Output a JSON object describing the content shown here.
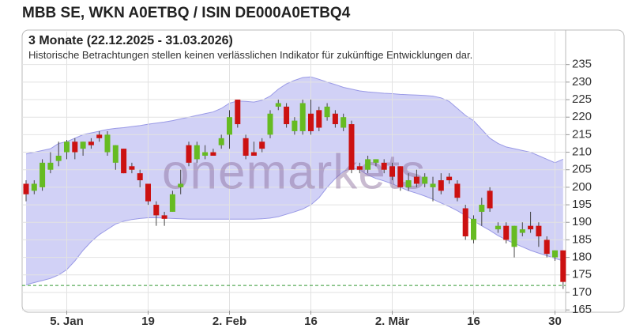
{
  "chart_data": {
    "type": "candlestick",
    "title": "MBB SE, WKN A0ETBQ / ISIN DE000A0ETBQ4",
    "subtitle": "3 Monate (22.12.2025 - 31.03.2026)",
    "note": "Historische Betrachtungen stellen keinen verlässlichen Indikator für zukünftige Entwicklungen dar.",
    "watermark": "onemarkets",
    "categories": [
      null,
      null,
      null,
      null,
      null,
      "5. Jan",
      null,
      null,
      null,
      null,
      null,
      null,
      null,
      null,
      null,
      "19",
      null,
      null,
      null,
      null,
      null,
      null,
      null,
      null,
      null,
      "2. Feb",
      null,
      null,
      null,
      null,
      null,
      null,
      null,
      null,
      null,
      "16",
      null,
      null,
      null,
      null,
      null,
      null,
      null,
      null,
      null,
      "2. Mär",
      null,
      null,
      null,
      null,
      null,
      null,
      null,
      null,
      null,
      "16",
      null,
      null,
      null,
      null,
      null,
      null,
      null,
      null,
      null,
      "30",
      null
    ],
    "open": [
      201,
      199,
      200,
      205,
      207.5,
      210,
      213,
      211,
      213,
      215,
      210,
      207,
      211,
      206,
      204,
      201,
      195,
      192,
      193,
      200,
      212,
      208,
      209,
      210,
      212,
      215,
      225,
      214,
      210,
      213,
      215,
      223,
      223,
      216,
      216,
      221,
      222,
      220,
      221,
      217,
      218,
      206,
      205,
      207,
      207,
      206,
      206,
      200,
      203,
      201,
      200,
      202,
      203,
      201,
      194,
      185,
      193,
      199,
      188,
      189,
      183,
      187,
      189,
      189,
      185,
      180,
      182
    ],
    "high": [
      202,
      202,
      208,
      210,
      213,
      213.5,
      214,
      213,
      214,
      216,
      216,
      212,
      211,
      207,
      205,
      201,
      196,
      193,
      199,
      205,
      213,
      213,
      212,
      211,
      215,
      222,
      225,
      215,
      213,
      214,
      222,
      225,
      224,
      220,
      225,
      225,
      223,
      224,
      222,
      221,
      219,
      207,
      209,
      208,
      208,
      207,
      206,
      204,
      205,
      204,
      203,
      204,
      204,
      202,
      195,
      192,
      197,
      200,
      190,
      190,
      189,
      190,
      193,
      190,
      186,
      182,
      182
    ],
    "low": [
      196,
      198,
      199,
      204,
      206,
      208,
      208,
      209,
      211,
      213,
      209,
      205,
      204,
      204,
      200,
      195,
      189,
      189,
      193,
      198,
      206,
      207,
      208,
      209,
      211,
      211,
      217,
      208,
      209,
      210,
      214,
      222,
      217,
      215,
      215,
      215,
      216,
      219,
      217,
      216,
      204,
      204,
      204,
      206,
      204,
      202,
      199,
      199,
      200,
      200,
      196,
      198,
      201,
      196,
      185,
      184,
      189,
      193,
      187,
      184,
      180,
      186,
      187,
      183,
      180,
      179,
      171
    ],
    "close": [
      198,
      201,
      207,
      207,
      209,
      213,
      210,
      213,
      212,
      214,
      215,
      212,
      204,
      205,
      202,
      196,
      192,
      191,
      198,
      201,
      207,
      212,
      210,
      209,
      214,
      220,
      218,
      209,
      209,
      211,
      221,
      224,
      218,
      219,
      224,
      216,
      217,
      223,
      218,
      220,
      205,
      205,
      208,
      208,
      205,
      203,
      200,
      202,
      201,
      203,
      201,
      199,
      202,
      197,
      186,
      191,
      195,
      194,
      189,
      185,
      189,
      188,
      188,
      186,
      181,
      182,
      173
    ],
    "up_color": "#66bb22",
    "down_color": "#cc1111",
    "band": {
      "color": "#ccccf5",
      "line_color": "#9999e6",
      "upper": [
        209.5,
        210,
        210.5,
        211,
        212.5,
        213,
        214,
        215,
        215.5,
        216,
        216.5,
        216.8,
        217,
        217.3,
        217.6,
        218,
        218.3,
        218.6,
        219,
        219.5,
        220,
        220.5,
        221,
        221.5,
        222.5,
        224,
        224.6,
        224.5,
        224.3,
        224.8,
        226,
        228,
        229.5,
        230.5,
        231.3,
        231.5,
        230.8,
        230,
        229.3,
        228.5,
        228,
        227.5,
        227.2,
        227,
        226.8,
        226.7,
        226.5,
        226.4,
        226.3,
        226.2,
        226,
        225.5,
        224.5,
        222.5,
        220.5,
        219,
        216.5,
        214,
        212.5,
        211.5,
        211,
        210.5,
        210,
        209,
        208,
        207,
        208
      ],
      "lower": [
        172.2,
        172.8,
        173.4,
        174,
        175,
        176.5,
        179,
        182,
        184.5,
        186.5,
        188,
        189.5,
        190.3,
        190.8,
        191.1,
        191.3,
        191.3,
        191.2,
        191.1,
        191,
        190.9,
        190.9,
        190.9,
        190.9,
        190.9,
        190.9,
        190.9,
        190.9,
        190.9,
        191,
        191.2,
        191.6,
        192.3,
        193,
        193.8,
        195,
        197,
        200,
        202.5,
        204.5,
        205.5,
        205,
        203.5,
        202.5,
        201.8,
        201,
        200,
        199,
        198.3,
        197.5,
        196.6,
        195.5,
        194.5,
        193.3,
        192,
        190.5,
        189,
        187.7,
        186.2,
        185,
        184,
        183,
        182,
        181.2,
        180.5,
        179.7,
        179
      ]
    },
    "reference_line": 172,
    "reference_color": "#339933",
    "ylim": [
      164.8,
      244.4
    ],
    "yticks": [
      165,
      170,
      175,
      180,
      185,
      190,
      195,
      200,
      205,
      210,
      215,
      220,
      225,
      230,
      235
    ],
    "grid": true
  }
}
